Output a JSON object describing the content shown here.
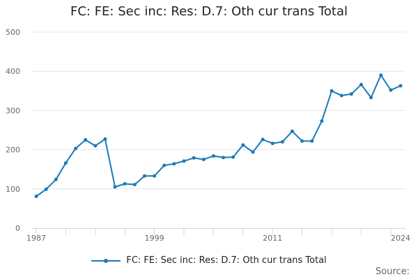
{
  "chart_data": {
    "type": "line",
    "title": "FC: FE: Sec inc: Res: D.7: Oth cur trans Total",
    "xlabel": "",
    "ylabel": "",
    "ylim": [
      0,
      500
    ],
    "yticks": [
      0,
      100,
      200,
      300,
      400,
      500
    ],
    "xtick_labels": [
      "1987",
      "1999",
      "2011",
      "2024"
    ],
    "grid": true,
    "legend_position": "bottom",
    "series": [
      {
        "name": "FC: FE: Sec inc: Res: D.7: Oth cur trans Total",
        "color": "#1a7ab8",
        "x": [
          1987,
          1988,
          1989,
          1990,
          1991,
          1992,
          1993,
          1994,
          1995,
          1996,
          1997,
          1998,
          1999,
          2000,
          2001,
          2002,
          2003,
          2004,
          2005,
          2006,
          2007,
          2008,
          2009,
          2010,
          2011,
          2012,
          2013,
          2014,
          2015,
          2016,
          2017,
          2018,
          2019,
          2020,
          2021,
          2022,
          2023,
          2024
        ],
        "values": [
          81,
          99,
          124,
          166,
          203,
          225,
          210,
          227,
          105,
          113,
          111,
          133,
          133,
          160,
          164,
          171,
          179,
          175,
          184,
          180,
          181,
          212,
          194,
          226,
          216,
          220,
          247,
          222,
          222,
          273,
          350,
          338,
          342,
          366,
          333,
          390,
          352,
          363
        ]
      }
    ]
  },
  "source_label": "Source:"
}
